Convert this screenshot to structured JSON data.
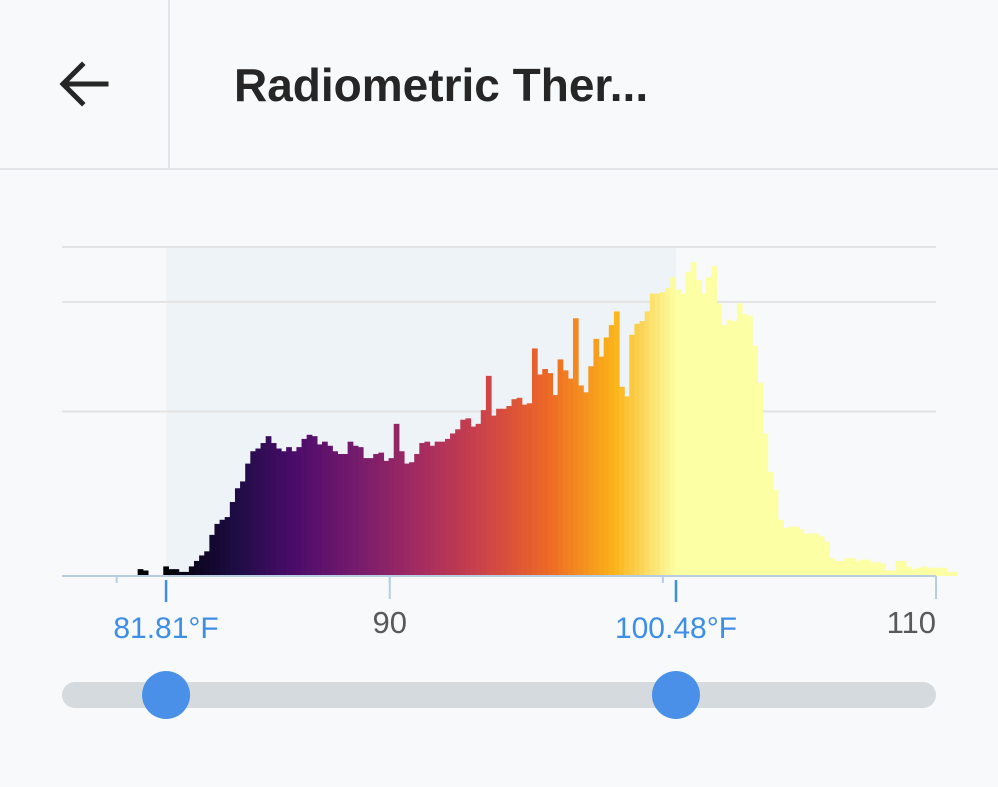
{
  "header": {
    "back_icon": "arrow-left-icon",
    "title": "Radiometric Ther..."
  },
  "colors": {
    "selection_marker": "#3d8ee6",
    "slider_thumb": "#4a90e8",
    "slider_track": "#d4dadd",
    "range_band": "#eef3f8",
    "gridline": "#e3e3e3",
    "axis": "#b8cce6"
  },
  "range": {
    "low_label": "81.81°F",
    "high_label": "100.48°F",
    "low": 81.81,
    "high": 100.48
  },
  "slider": {
    "min": 78,
    "max": 110
  },
  "chart_data": {
    "type": "bar",
    "colormap": "inferno",
    "xlim": [
      78,
      110
    ],
    "ticks": [
      "90",
      "110"
    ],
    "tick_values": [
      90,
      110
    ],
    "minor_ticks": [
      80,
      90,
      100,
      110
    ],
    "ymax": 240,
    "gridlines": [
      120,
      200
    ],
    "bin_start": 80.77,
    "bin_width": 0.1875,
    "values": [
      5,
      4,
      0,
      0,
      0,
      7,
      5,
      5,
      3,
      3,
      7,
      11,
      15,
      18,
      30,
      38,
      41,
      43,
      54,
      64,
      69,
      82,
      91,
      93,
      97,
      102,
      97,
      93,
      91,
      94,
      91,
      94,
      100,
      103,
      102,
      96,
      98,
      95,
      91,
      89,
      89,
      98,
      95,
      94,
      86,
      86,
      89,
      90,
      84,
      86,
      111,
      91,
      82,
      83,
      89,
      97,
      98,
      95,
      98,
      98,
      100,
      104,
      107,
      114,
      115,
      109,
      111,
      121,
      146,
      117,
      122,
      122,
      124,
      129,
      130,
      125,
      126,
      166,
      147,
      151,
      148,
      132,
      158,
      150,
      144,
      188,
      139,
      134,
      153,
      173,
      160,
      174,
      183,
      193,
      138,
      131,
      176,
      184,
      186,
      193,
      206,
      206,
      207,
      210,
      218,
      209,
      206,
      222,
      229,
      216,
      206,
      218,
      226,
      199,
      183,
      187,
      186,
      199,
      191,
      190,
      168,
      141,
      104,
      76,
      63,
      41,
      35,
      36,
      36,
      34,
      31,
      31,
      31,
      29,
      25,
      13,
      11,
      11,
      13,
      13,
      11,
      12,
      12,
      10,
      10,
      9,
      4,
      4,
      11,
      11,
      7,
      5,
      6,
      7,
      6,
      6,
      6,
      6,
      3,
      3
    ]
  }
}
